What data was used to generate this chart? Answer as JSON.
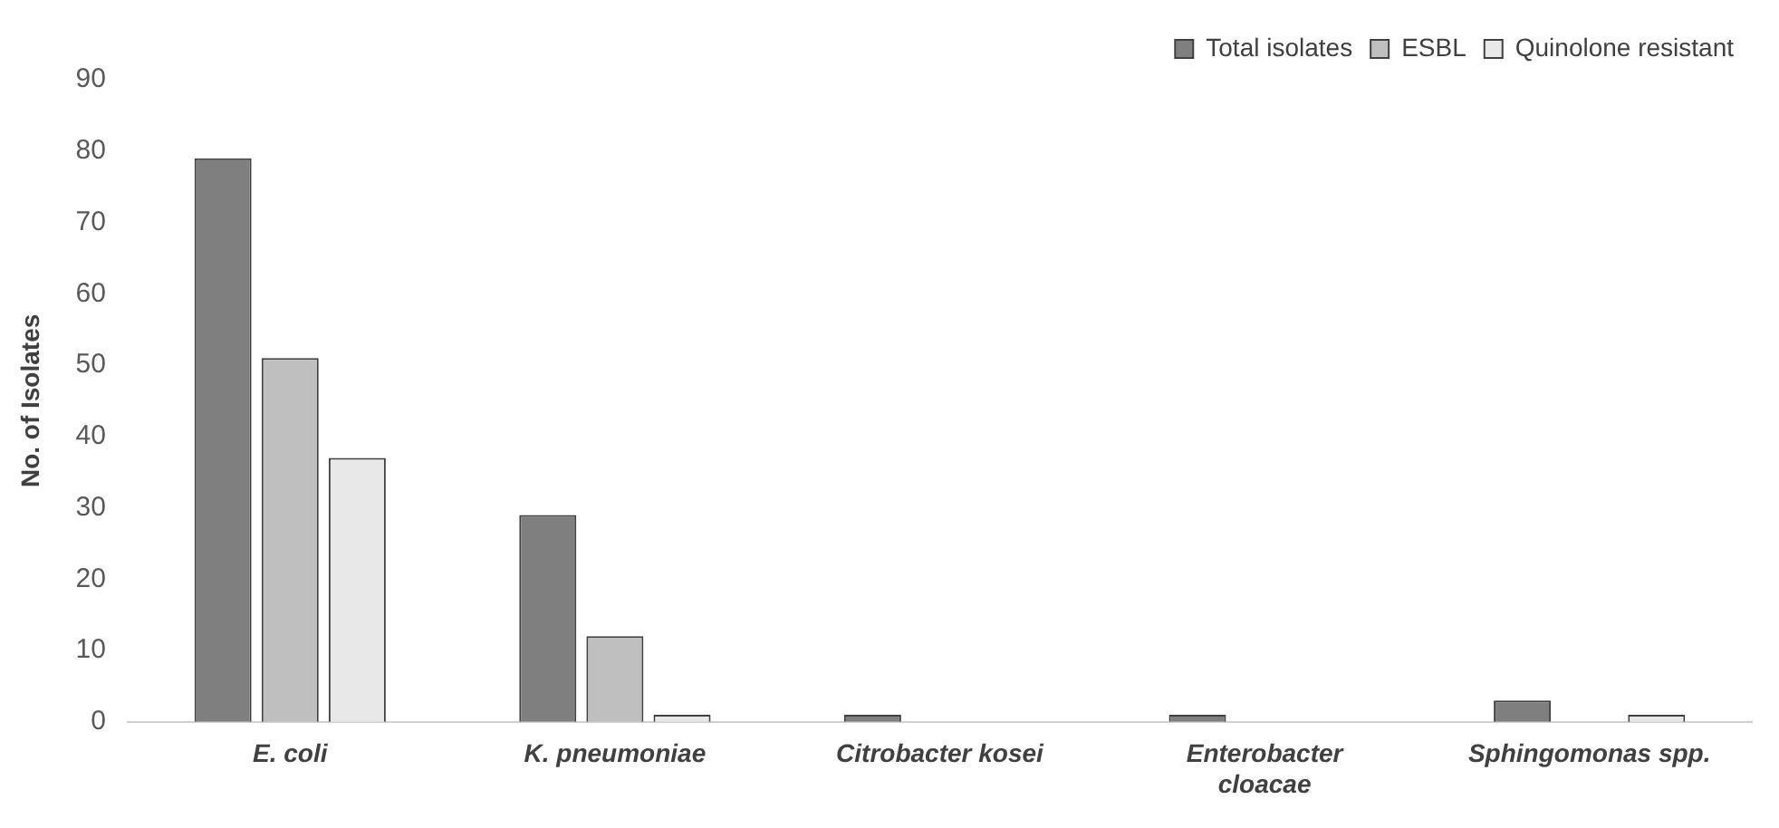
{
  "chart_data": {
    "type": "bar",
    "ylabel": "No. of Isolates",
    "categories": [
      "E. coli",
      "K. pneumoniae",
      "Citrobacter kosei",
      "Enterobacter cloacae",
      "Sphingomonas spp."
    ],
    "series": [
      {
        "name": "Total isolates",
        "color": "#7f7f7f",
        "values": [
          79,
          29,
          1,
          1,
          3
        ]
      },
      {
        "name": "ESBL",
        "color": "#bfbfbf",
        "values": [
          51,
          12,
          0,
          0,
          0
        ]
      },
      {
        "name": "Quinolone resistant",
        "color": "#e8e8e8",
        "values": [
          37,
          1,
          0,
          0,
          1
        ]
      }
    ],
    "ylim": [
      0,
      90
    ],
    "yticks": [
      0,
      10,
      20,
      30,
      40,
      50,
      60,
      70,
      80,
      90
    ],
    "grid": false,
    "legend": "top right"
  }
}
